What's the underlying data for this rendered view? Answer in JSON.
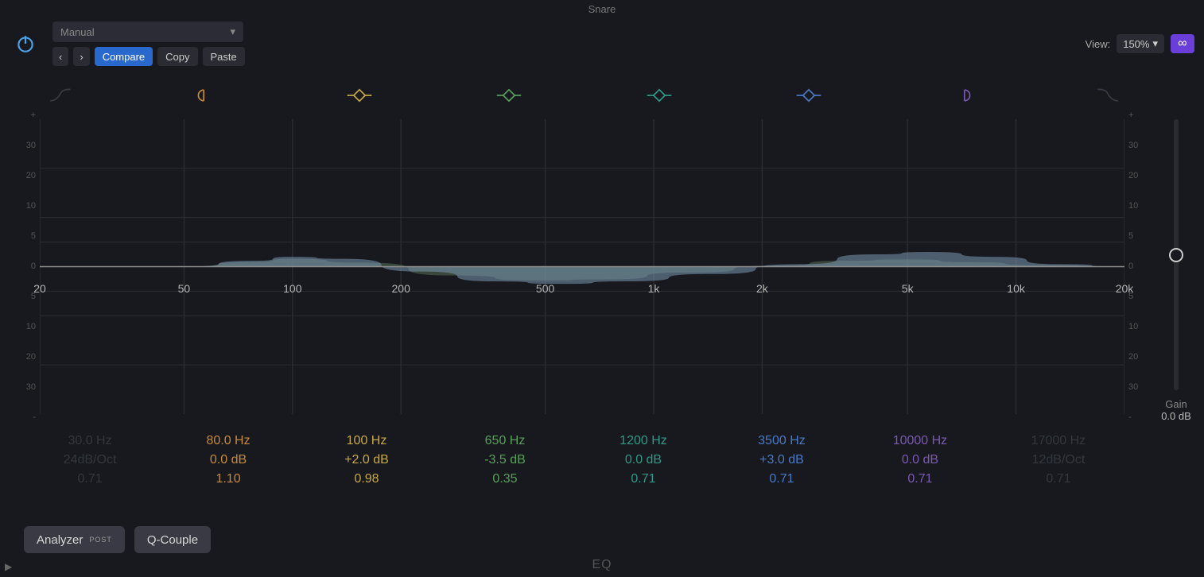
{
  "window": {
    "title": "Snare"
  },
  "toolbar": {
    "preset": "Manual",
    "nav_prev": "‹",
    "nav_next": "›",
    "compare": "Compare",
    "copy": "Copy",
    "paste": "Paste",
    "view_label": "View:",
    "zoom": "150%",
    "link_glyph": "∞"
  },
  "chart": {
    "type": "eq-curve",
    "background_color": "#18191e",
    "grid_color": "#2c2d33",
    "axis_line_color": "#8e8e8e",
    "x_axis": {
      "scale": "log",
      "min_hz": 20,
      "max_hz": 20000,
      "ticks": [
        {
          "hz": 20,
          "label": "20",
          "pct": 0
        },
        {
          "hz": 50,
          "label": "50",
          "pct": 13.3
        },
        {
          "hz": 100,
          "label": "100",
          "pct": 23.3
        },
        {
          "hz": 200,
          "label": "200",
          "pct": 33.3
        },
        {
          "hz": 500,
          "label": "500",
          "pct": 46.6
        },
        {
          "hz": 1000,
          "label": "1k",
          "pct": 56.6
        },
        {
          "hz": 2000,
          "label": "2k",
          "pct": 66.6
        },
        {
          "hz": 5000,
          "label": "5k",
          "pct": 80.0
        },
        {
          "hz": 10000,
          "label": "10k",
          "pct": 90.0
        },
        {
          "hz": 20000,
          "label": "20k",
          "pct": 100
        }
      ]
    },
    "y_axis": {
      "min_db": -30,
      "max_db": 30,
      "ticks": [
        "+",
        "30",
        "20",
        "10",
        "5",
        "0",
        "5",
        "10",
        "20",
        "30",
        "-"
      ]
    },
    "curve_fill_colors": [
      "#5b7659",
      "#7a98b2"
    ],
    "curve_fill_opacity": 0.55,
    "curve_points_db": [
      {
        "pct": 0,
        "db": 0
      },
      {
        "pct": 13,
        "db": 0
      },
      {
        "pct": 20,
        "db": 1.2
      },
      {
        "pct": 23,
        "db": 2.0
      },
      {
        "pct": 28,
        "db": 1.6
      },
      {
        "pct": 35,
        "db": -1.0
      },
      {
        "pct": 42,
        "db": -3.0
      },
      {
        "pct": 48,
        "db": -3.5
      },
      {
        "pct": 54,
        "db": -3.0
      },
      {
        "pct": 62,
        "db": -1.5
      },
      {
        "pct": 70,
        "db": 0.5
      },
      {
        "pct": 77,
        "db": 2.5
      },
      {
        "pct": 82,
        "db": 3.0
      },
      {
        "pct": 88,
        "db": 2.0
      },
      {
        "pct": 94,
        "db": 0.5
      },
      {
        "pct": 100,
        "db": 0
      }
    ],
    "curve_points_db_layer2": [
      {
        "pct": 0,
        "db": 0
      },
      {
        "pct": 13,
        "db": 0
      },
      {
        "pct": 20,
        "db": 1.0
      },
      {
        "pct": 23,
        "db": 1.6
      },
      {
        "pct": 30,
        "db": 0.8
      },
      {
        "pct": 38,
        "db": -1.8
      },
      {
        "pct": 46,
        "db": -2.8
      },
      {
        "pct": 52,
        "db": -2.6
      },
      {
        "pct": 60,
        "db": -1.2
      },
      {
        "pct": 68,
        "db": 0.2
      },
      {
        "pct": 74,
        "db": 1.2
      },
      {
        "pct": 80,
        "db": 1.5
      },
      {
        "pct": 86,
        "db": 0.9
      },
      {
        "pct": 92,
        "db": 0.3
      },
      {
        "pct": 100,
        "db": 0
      }
    ]
  },
  "bands": [
    {
      "idx": 0,
      "active": false,
      "shape": "hp",
      "color": "#5b6470",
      "freq": "30.0 Hz",
      "gain": "24dB/Oct",
      "q": "0.71"
    },
    {
      "idx": 1,
      "active": true,
      "shape": "lowshelf",
      "color": "#c88a3b",
      "freq": "80.0 Hz",
      "gain": "0.0 dB",
      "q": "1.10"
    },
    {
      "idx": 2,
      "active": true,
      "shape": "bell",
      "color": "#c7a946",
      "freq": "100 Hz",
      "gain": "+2.0 dB",
      "q": "0.98"
    },
    {
      "idx": 3,
      "active": true,
      "shape": "bell",
      "color": "#58a05a",
      "freq": "650 Hz",
      "gain": "-3.5 dB",
      "q": "0.35"
    },
    {
      "idx": 4,
      "active": true,
      "shape": "bell",
      "color": "#2f9a87",
      "freq": "1200 Hz",
      "gain": "0.0 dB",
      "q": "0.71"
    },
    {
      "idx": 5,
      "active": true,
      "shape": "bell",
      "color": "#4a79c7",
      "freq": "3500 Hz",
      "gain": "+3.0 dB",
      "q": "0.71"
    },
    {
      "idx": 6,
      "active": true,
      "shape": "highshelf",
      "color": "#7a59b3",
      "freq": "10000 Hz",
      "gain": "0.0 dB",
      "q": "0.71"
    },
    {
      "idx": 7,
      "active": false,
      "shape": "lp",
      "color": "#5b6470",
      "freq": "17000 Hz",
      "gain": "12dB/Oct",
      "q": "0.71"
    }
  ],
  "master_gain": {
    "label": "Gain",
    "value": "0.0 dB"
  },
  "footer": {
    "analyzer_label": "Analyzer",
    "analyzer_sub": "POST",
    "qcouple_label": "Q-Couple"
  },
  "plugin_name": "EQ",
  "play_glyph": "▶"
}
